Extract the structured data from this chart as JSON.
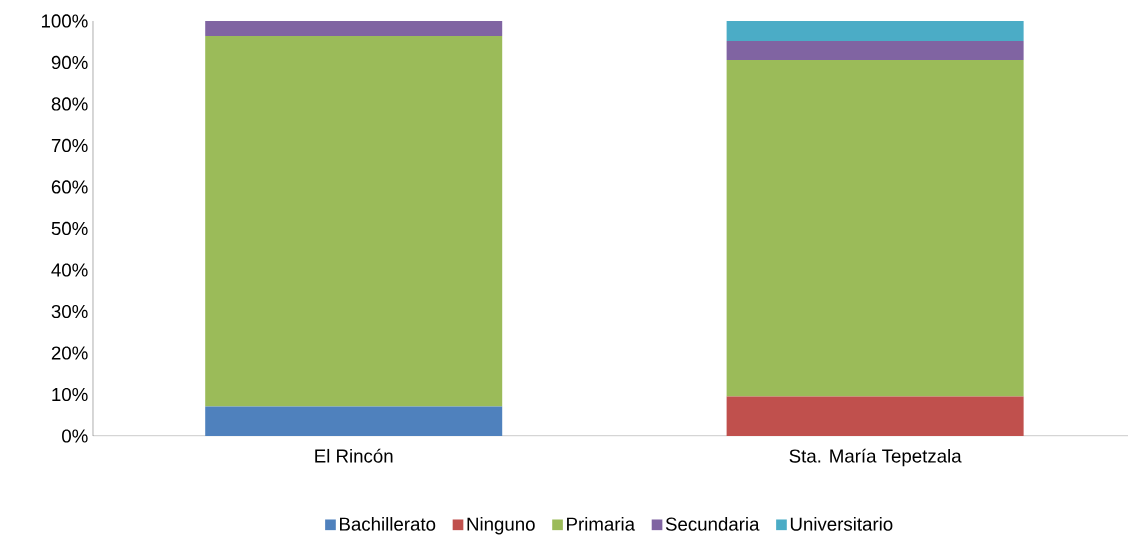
{
  "chart_data": {
    "type": "bar",
    "stacked": true,
    "categories": [
      "El Rincón",
      "Sta. María Tepetzala"
    ],
    "series": [
      {
        "name": "Bachillerato",
        "color": "#4f81bd",
        "values": [
          7.1,
          0
        ]
      },
      {
        "name": "Ninguno",
        "color": "#c0504d",
        "values": [
          0,
          9.5
        ]
      },
      {
        "name": "Primaria",
        "color": "#9bbb59",
        "values": [
          89.3,
          81.1
        ]
      },
      {
        "name": "Secundaria",
        "color": "#8064a2",
        "values": [
          3.6,
          4.6
        ]
      },
      {
        "name": "Universitario",
        "color": "#4bacc6",
        "values": [
          0,
          4.8
        ]
      }
    ],
    "ylim": [
      0,
      100
    ],
    "yticks": [
      {
        "value": 0,
        "label": "0%"
      },
      {
        "value": 10,
        "label": "10%"
      },
      {
        "value": 20,
        "label": "20%"
      },
      {
        "value": 30,
        "label": "30%"
      },
      {
        "value": 40,
        "label": "40%"
      },
      {
        "value": 50,
        "label": "50%"
      },
      {
        "value": 60,
        "label": "60%"
      },
      {
        "value": 70,
        "label": "70%"
      },
      {
        "value": 80,
        "label": "80%"
      },
      {
        "value": 90,
        "label": "90%"
      },
      {
        "value": 100,
        "label": "100%"
      }
    ],
    "legend": "bottom",
    "grid": false
  }
}
